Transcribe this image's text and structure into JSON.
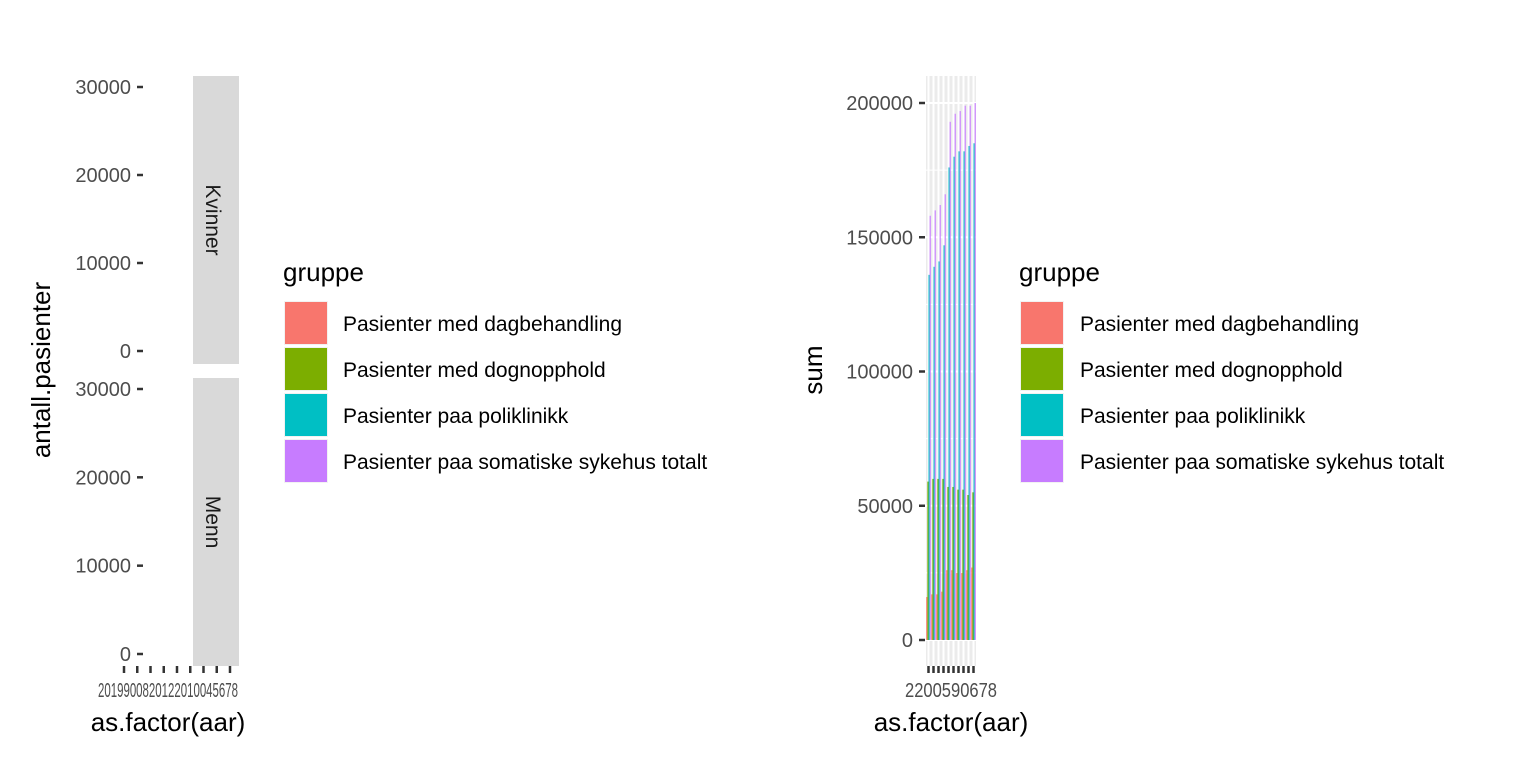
{
  "chart_data": [
    {
      "type": "bar",
      "facets": [
        "Kvinner",
        "Menn"
      ],
      "xlabel": "as.factor(aar)",
      "ylabel": "antall.pasienter",
      "ylim": [
        0,
        30000
      ],
      "yticks": [
        "0",
        "10000",
        "20000",
        "30000"
      ],
      "x_tick_count": 9,
      "x_tick_text": "2019900820122010045678",
      "legend": {
        "title": "gruppe",
        "placement": "right",
        "items": [
          {
            "label": "Pasienter med dagbehandling",
            "color": "#F8766D"
          },
          {
            "label": "Pasienter med dognopphold",
            "color": "#7CAE00"
          },
          {
            "label": "Pasienter paa poliklinikk",
            "color": "#00BFC4"
          },
          {
            "label": "Pasienter paa somatiske sykehus totalt",
            "color": "#C77CFF"
          }
        ]
      }
    },
    {
      "type": "bar",
      "xlabel": "as.factor(aar)",
      "ylabel": "sum",
      "ylim": [
        0,
        200000
      ],
      "yticks": [
        "0",
        "50000",
        "100000",
        "150000",
        "200000"
      ],
      "x_tick_text": "2200590678",
      "categories": [
        "2009",
        "2010",
        "2011",
        "2012",
        "2013",
        "2014",
        "2015",
        "2016",
        "2017",
        "2018"
      ],
      "series": [
        {
          "name": "Pasienter med dagbehandling",
          "color": "#F8766D",
          "values": [
            16000,
            17000,
            17000,
            18000,
            26000,
            26000,
            25000,
            25000,
            26000,
            27000
          ]
        },
        {
          "name": "Pasienter med dognopphold",
          "color": "#7CAE00",
          "values": [
            59000,
            60000,
            60000,
            60000,
            57000,
            57000,
            56000,
            56000,
            54000,
            55000
          ]
        },
        {
          "name": "Pasienter paa poliklinikk",
          "color": "#00BFC4",
          "values": [
            136000,
            139000,
            141000,
            147000,
            176000,
            180000,
            182000,
            182000,
            184000,
            185000
          ]
        },
        {
          "name": "Pasienter paa somatiske sykehus totalt",
          "color": "#C77CFF",
          "values": [
            158000,
            160000,
            162000,
            166000,
            193000,
            196000,
            197000,
            199000,
            199000,
            200000
          ]
        }
      ],
      "legend": {
        "title": "gruppe",
        "placement": "right",
        "items": [
          {
            "label": "Pasienter med dagbehandling",
            "color": "#F8766D"
          },
          {
            "label": "Pasienter med dognopphold",
            "color": "#7CAE00"
          },
          {
            "label": "Pasienter paa poliklinikk",
            "color": "#00BFC4"
          },
          {
            "label": "Pasienter paa somatiske sykehus totalt",
            "color": "#C77CFF"
          }
        ]
      }
    }
  ]
}
